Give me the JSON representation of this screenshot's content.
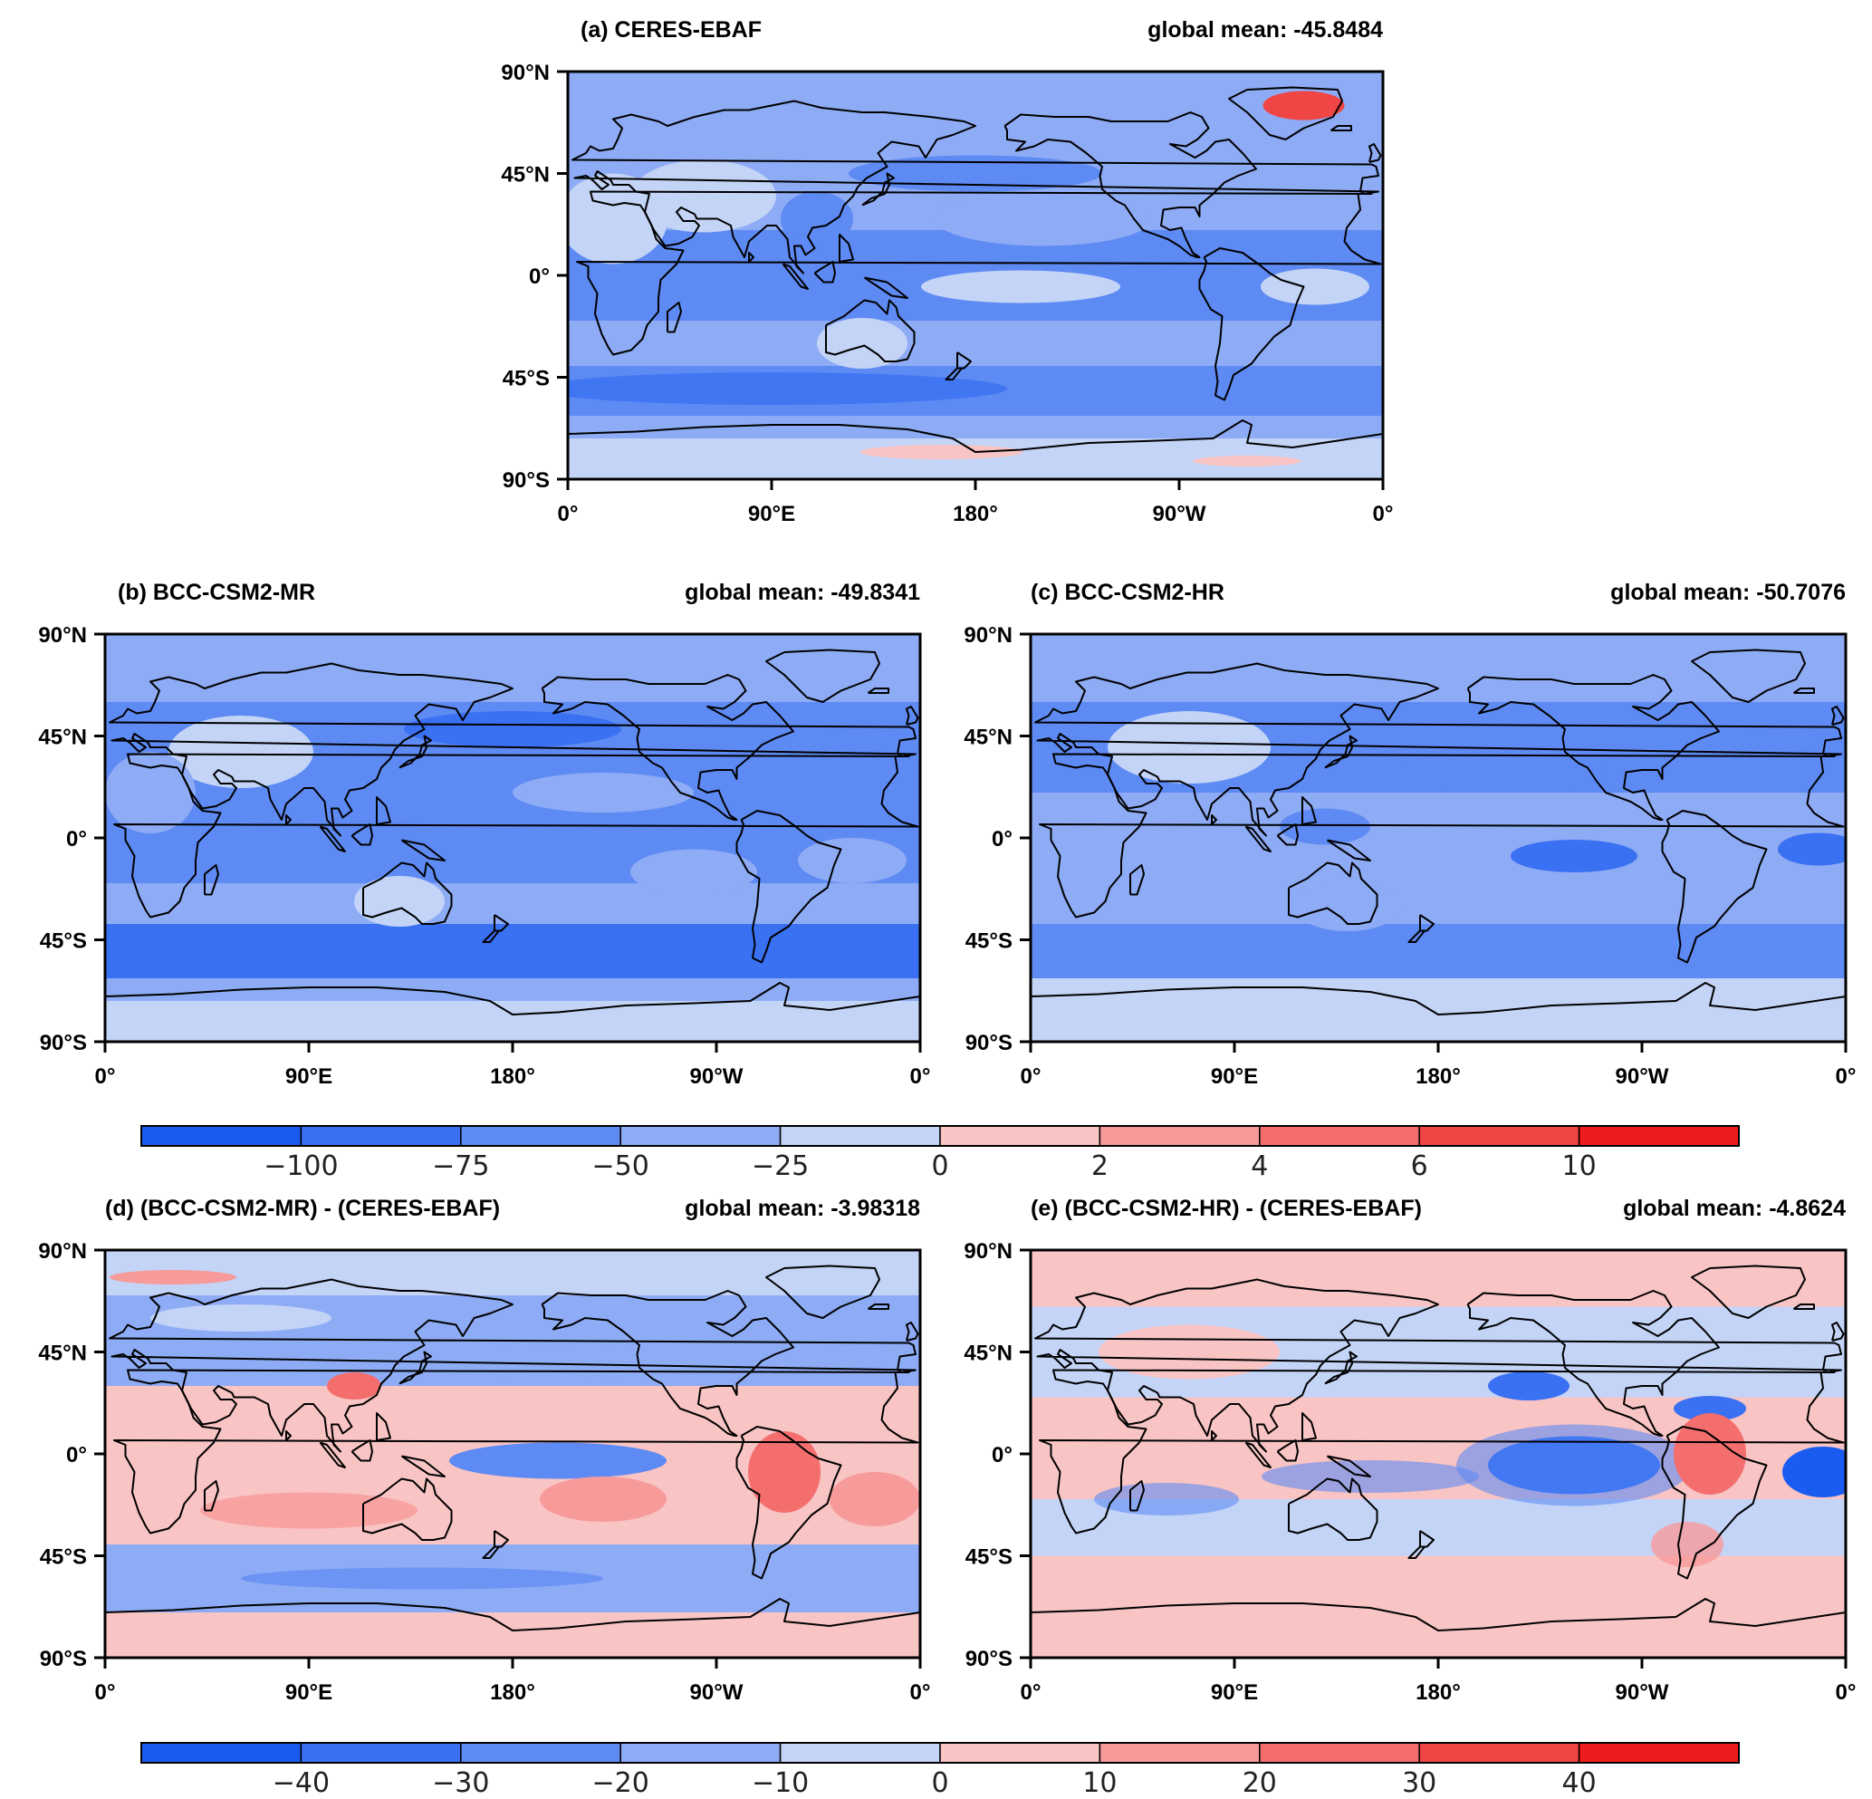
{
  "panels": [
    {
      "id": "a",
      "title": "(a) CERES-EBAF",
      "mean": "global mean: -45.8484",
      "kind": "abs"
    },
    {
      "id": "b",
      "title": "(b) BCC-CSM2-MR",
      "mean": "global mean: -49.8341",
      "kind": "abs"
    },
    {
      "id": "c",
      "title": "(c) BCC-CSM2-HR",
      "mean": "global mean: -50.7076",
      "kind": "abs"
    },
    {
      "id": "d",
      "title": "(d) (BCC-CSM2-MR) - (CERES-EBAF)",
      "mean": "global mean: -3.98318",
      "kind": "diff"
    },
    {
      "id": "e",
      "title": "(e) (BCC-CSM2-HR) - (CERES-EBAF)",
      "mean": "global mean: -4.8624",
      "kind": "diff"
    }
  ],
  "lat_ticks": [
    "90°N",
    "45°N",
    "0°",
    "45°S",
    "90°S"
  ],
  "lon_ticks": [
    "0°",
    "90°E",
    "180°",
    "90°W",
    "0°"
  ],
  "colorbar_top": {
    "labels": [
      "−100",
      "−75",
      "−50",
      "−25",
      "0",
      "2",
      "4",
      "6",
      "10"
    ],
    "colors": [
      "#1a5cf0",
      "#3a70f2",
      "#5e8af3",
      "#8eabf5",
      "#c3d4f7",
      "#f9c4c4",
      "#f79a9a",
      "#f46e6e",
      "#f04545",
      "#ee1c1c"
    ]
  },
  "colorbar_bottom": {
    "labels": [
      "−40",
      "−30",
      "−20",
      "−10",
      "0",
      "10",
      "20",
      "30",
      "40"
    ],
    "colors": [
      "#1a5cf0",
      "#3a70f2",
      "#5e8af3",
      "#8eabf5",
      "#c3d4f7",
      "#f9c4c4",
      "#f79a9a",
      "#f46e6e",
      "#f04545",
      "#ee1c1c"
    ]
  }
}
